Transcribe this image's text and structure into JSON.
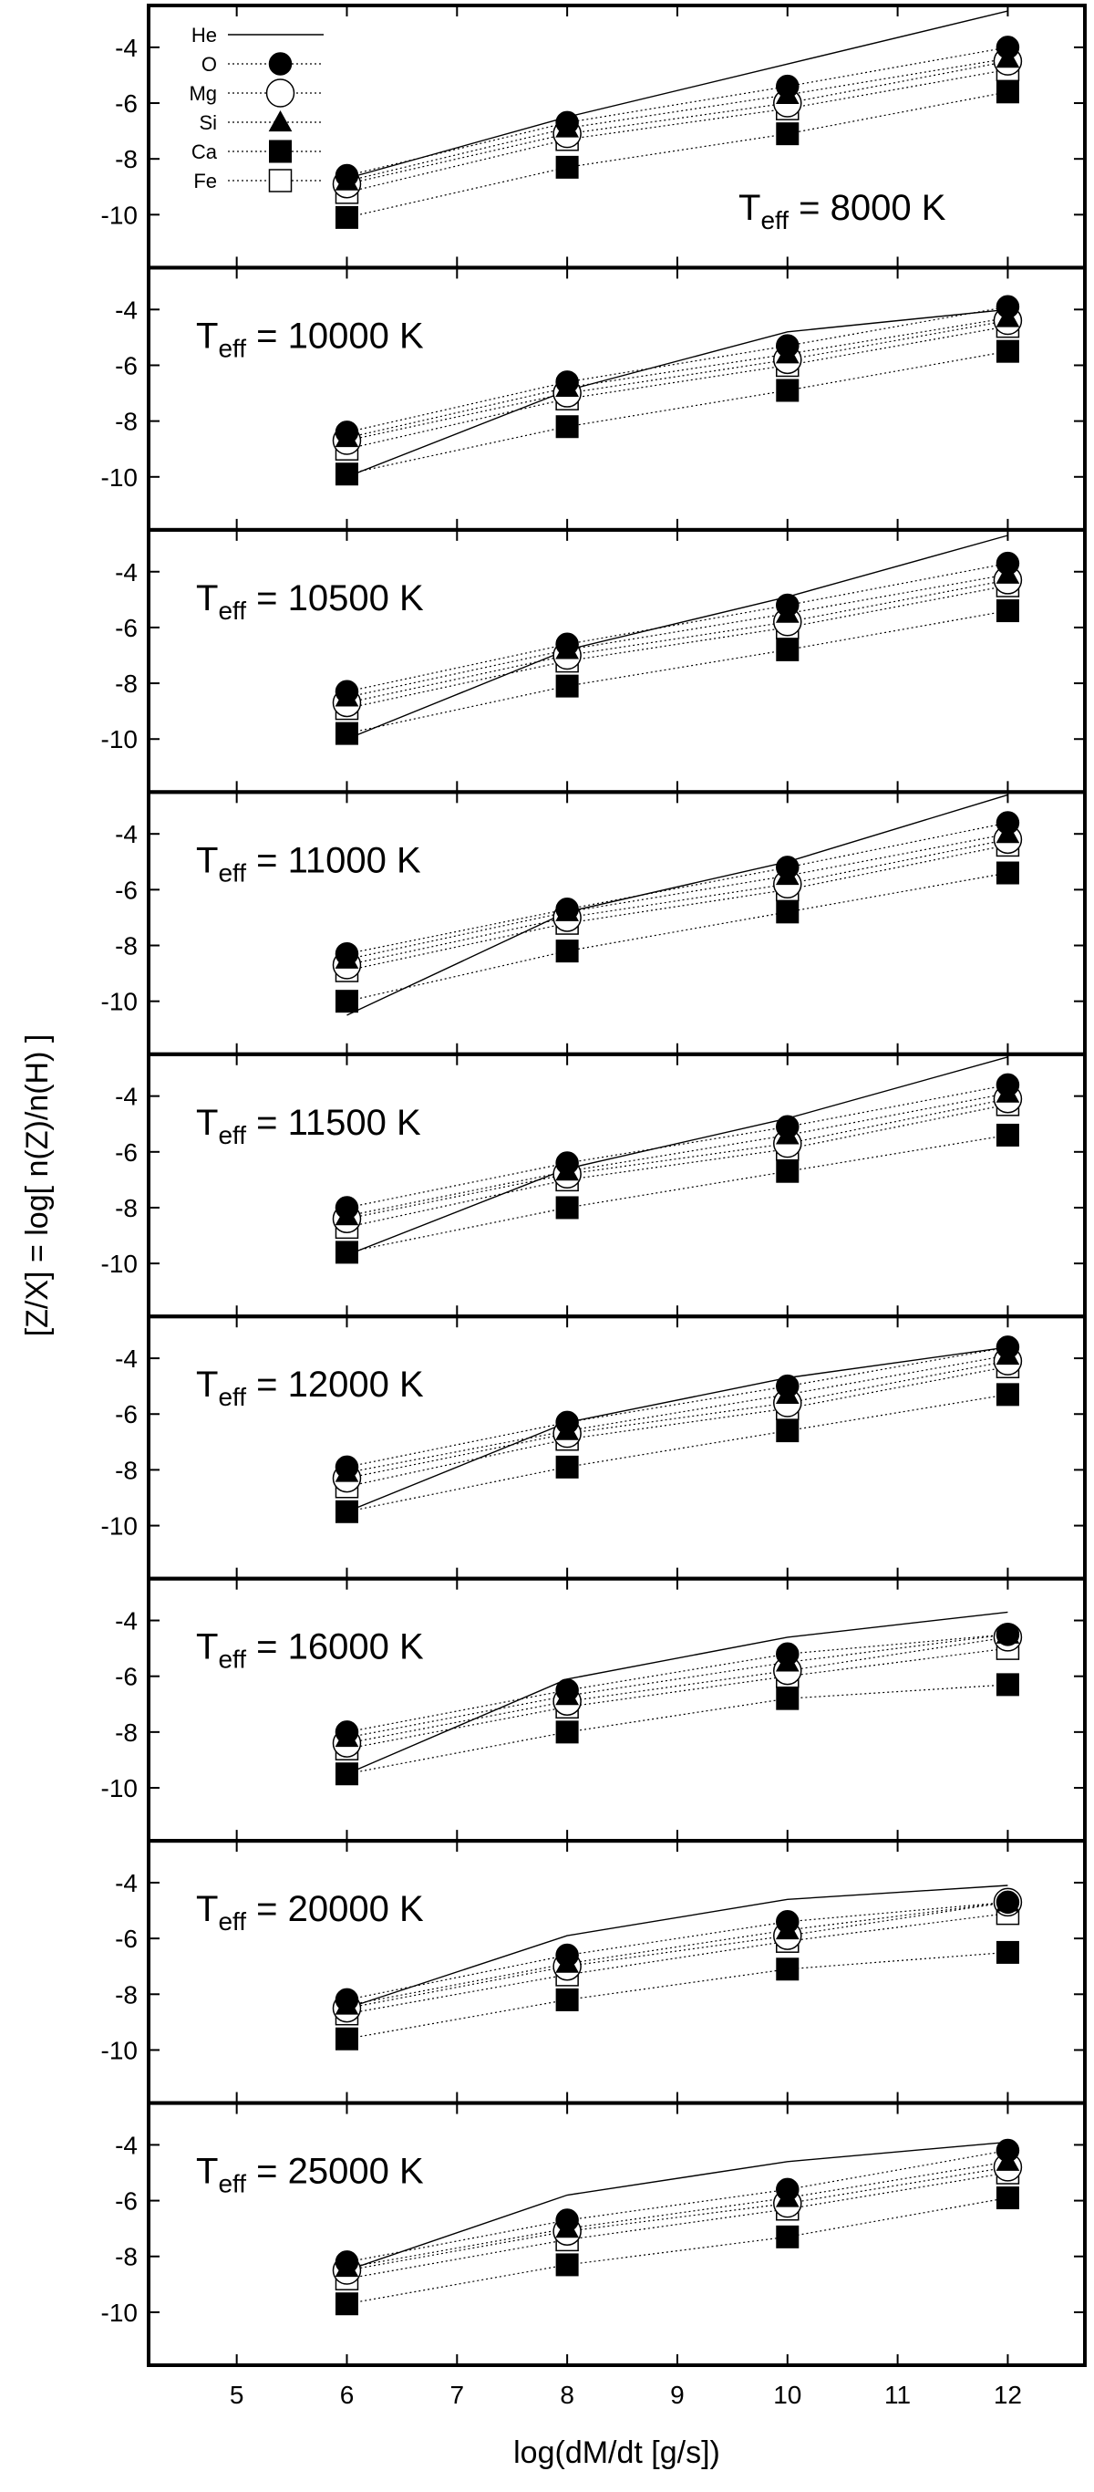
{
  "chart_data": {
    "type": "line",
    "shared_x_axis": {
      "label": "log(dM/dt [g/s])",
      "ticks": [
        5,
        6,
        7,
        8,
        9,
        10,
        11,
        12
      ],
      "range": [
        4.2,
        12.7
      ]
    },
    "y_axis": {
      "label": "[Z/X] = log[ n(Z)/n(H) ]",
      "ticks": [
        -4,
        -6,
        -8,
        -10
      ],
      "range": [
        -11.9,
        -2.5
      ]
    },
    "legend": {
      "placement": "top-left of first panel",
      "entries": [
        {
          "name": "He",
          "marker": "line"
        },
        {
          "name": "O",
          "marker": "filled-circle"
        },
        {
          "name": "Mg",
          "marker": "open-circle"
        },
        {
          "name": "Si",
          "marker": "filled-triangle"
        },
        {
          "name": "Ca",
          "marker": "filled-square"
        },
        {
          "name": "Fe",
          "marker": "open-square"
        }
      ]
    },
    "x": [
      6,
      8,
      10,
      12
    ],
    "panels": [
      {
        "label_main": "T",
        "label_sub": "eff",
        "label_rest": " = 8000 K",
        "series": [
          {
            "name": "He",
            "values": [
              -8.7,
              -6.5,
              -4.6,
              -2.7
            ]
          },
          {
            "name": "O",
            "values": [
              -8.6,
              -6.7,
              -5.4,
              -4.0
            ]
          },
          {
            "name": "Mg",
            "values": [
              -8.9,
              -7.1,
              -6.0,
              -4.5
            ]
          },
          {
            "name": "Si",
            "values": [
              -8.8,
              -6.9,
              -5.7,
              -4.4
            ]
          },
          {
            "name": "Ca",
            "values": [
              -10.1,
              -8.3,
              -7.1,
              -5.6
            ]
          },
          {
            "name": "Fe",
            "values": [
              -9.2,
              -7.3,
              -6.2,
              -4.8
            ]
          }
        ]
      },
      {
        "label_main": "T",
        "label_sub": "eff",
        "label_rest": " = 10000 K",
        "series": [
          {
            "name": "He",
            "values": [
              -10.0,
              -6.9,
              -4.8,
              -4.0
            ]
          },
          {
            "name": "O",
            "values": [
              -8.4,
              -6.6,
              -5.3,
              -3.9
            ]
          },
          {
            "name": "Mg",
            "values": [
              -8.7,
              -7.0,
              -5.8,
              -4.4
            ]
          },
          {
            "name": "Si",
            "values": [
              -8.6,
              -6.8,
              -5.6,
              -4.3
            ]
          },
          {
            "name": "Ca",
            "values": [
              -9.9,
              -8.2,
              -6.9,
              -5.5
            ]
          },
          {
            "name": "Fe",
            "values": [
              -9.0,
              -7.2,
              -6.0,
              -4.6
            ]
          }
        ]
      },
      {
        "label_main": "T",
        "label_sub": "eff",
        "label_rest": " = 10500 K",
        "series": [
          {
            "name": "He",
            "values": [
              -10.0,
              -6.8,
              -4.9,
              -2.7
            ]
          },
          {
            "name": "O",
            "values": [
              -8.3,
              -6.6,
              -5.2,
              -3.7
            ]
          },
          {
            "name": "Mg",
            "values": [
              -8.7,
              -7.0,
              -5.8,
              -4.3
            ]
          },
          {
            "name": "Si",
            "values": [
              -8.5,
              -6.8,
              -5.5,
              -4.1
            ]
          },
          {
            "name": "Ca",
            "values": [
              -9.8,
              -8.1,
              -6.8,
              -5.4
            ]
          },
          {
            "name": "Fe",
            "values": [
              -8.9,
              -7.2,
              -6.0,
              -4.5
            ]
          }
        ]
      },
      {
        "label_main": "T",
        "label_sub": "eff",
        "label_rest": " = 11000 K",
        "series": [
          {
            "name": "He",
            "values": [
              -10.5,
              -6.8,
              -5.0,
              -2.6
            ]
          },
          {
            "name": "O",
            "values": [
              -8.3,
              -6.7,
              -5.2,
              -3.6
            ]
          },
          {
            "name": "Mg",
            "values": [
              -8.7,
              -7.0,
              -5.8,
              -4.2
            ]
          },
          {
            "name": "Si",
            "values": [
              -8.5,
              -6.8,
              -5.5,
              -4.0
            ]
          },
          {
            "name": "Ca",
            "values": [
              -10.0,
              -8.2,
              -6.8,
              -5.4
            ]
          },
          {
            "name": "Fe",
            "values": [
              -8.9,
              -7.2,
              -6.0,
              -4.4
            ]
          }
        ]
      },
      {
        "label_main": "T",
        "label_sub": "eff",
        "label_rest": " = 11500 K",
        "series": [
          {
            "name": "He",
            "values": [
              -9.7,
              -6.6,
              -4.8,
              -2.6
            ]
          },
          {
            "name": "O",
            "values": [
              -8.0,
              -6.4,
              -5.1,
              -3.6
            ]
          },
          {
            "name": "Mg",
            "values": [
              -8.4,
              -6.8,
              -5.7,
              -4.1
            ]
          },
          {
            "name": "Si",
            "values": [
              -8.3,
              -6.7,
              -5.4,
              -3.9
            ]
          },
          {
            "name": "Ca",
            "values": [
              -9.6,
              -8.0,
              -6.7,
              -5.4
            ]
          },
          {
            "name": "Fe",
            "values": [
              -8.7,
              -7.0,
              -5.9,
              -4.3
            ]
          }
        ]
      },
      {
        "label_main": "T",
        "label_sub": "eff",
        "label_rest": " = 12000 K",
        "series": [
          {
            "name": "He",
            "values": [
              -9.5,
              -6.3,
              -4.7,
              -3.6
            ]
          },
          {
            "name": "O",
            "values": [
              -7.9,
              -6.3,
              -5.0,
              -3.6
            ]
          },
          {
            "name": "Mg",
            "values": [
              -8.3,
              -6.7,
              -5.6,
              -4.1
            ]
          },
          {
            "name": "Si",
            "values": [
              -8.1,
              -6.6,
              -5.3,
              -3.9
            ]
          },
          {
            "name": "Ca",
            "values": [
              -9.5,
              -7.9,
              -6.6,
              -5.3
            ]
          },
          {
            "name": "Fe",
            "values": [
              -8.6,
              -6.9,
              -5.8,
              -4.3
            ]
          }
        ]
      },
      {
        "label_main": "T",
        "label_sub": "eff",
        "label_rest": " = 16000 K",
        "series": [
          {
            "name": "He",
            "values": [
              -9.5,
              -6.1,
              -4.6,
              -3.7
            ]
          },
          {
            "name": "O",
            "values": [
              -8.0,
              -6.5,
              -5.2,
              -4.5
            ]
          },
          {
            "name": "Mg",
            "values": [
              -8.4,
              -6.9,
              -5.8,
              -4.6
            ]
          },
          {
            "name": "Si",
            "values": [
              -8.2,
              -6.7,
              -5.5,
              -4.5
            ]
          },
          {
            "name": "Ca",
            "values": [
              -9.5,
              -8.0,
              -6.8,
              -6.3
            ]
          },
          {
            "name": "Fe",
            "values": [
              -8.6,
              -7.1,
              -6.0,
              -5.0
            ]
          }
        ]
      },
      {
        "label_main": "T",
        "label_sub": "eff",
        "label_rest": " = 20000 K",
        "series": [
          {
            "name": "He",
            "values": [
              -8.5,
              -5.9,
              -4.6,
              -4.1
            ]
          },
          {
            "name": "O",
            "values": [
              -8.2,
              -6.6,
              -5.4,
              -4.7
            ]
          },
          {
            "name": "Mg",
            "values": [
              -8.5,
              -7.0,
              -5.9,
              -4.7
            ]
          },
          {
            "name": "Si",
            "values": [
              -8.4,
              -6.9,
              -5.7,
              -4.7
            ]
          },
          {
            "name": "Ca",
            "values": [
              -9.6,
              -8.2,
              -7.1,
              -6.5
            ]
          },
          {
            "name": "Fe",
            "values": [
              -8.7,
              -7.3,
              -6.1,
              -5.1
            ]
          }
        ]
      },
      {
        "label_main": "T",
        "label_sub": "eff",
        "label_rest": " = 25000 K",
        "series": [
          {
            "name": "He",
            "values": [
              -8.5,
              -5.8,
              -4.6,
              -3.9
            ]
          },
          {
            "name": "O",
            "values": [
              -8.2,
              -6.7,
              -5.6,
              -4.2
            ]
          },
          {
            "name": "Mg",
            "values": [
              -8.5,
              -7.1,
              -6.1,
              -4.8
            ]
          },
          {
            "name": "Si",
            "values": [
              -8.4,
              -7.0,
              -5.9,
              -4.6
            ]
          },
          {
            "name": "Ca",
            "values": [
              -9.7,
              -8.3,
              -7.3,
              -5.9
            ]
          },
          {
            "name": "Fe",
            "values": [
              -8.8,
              -7.4,
              -6.3,
              -5.0
            ]
          }
        ]
      }
    ]
  }
}
